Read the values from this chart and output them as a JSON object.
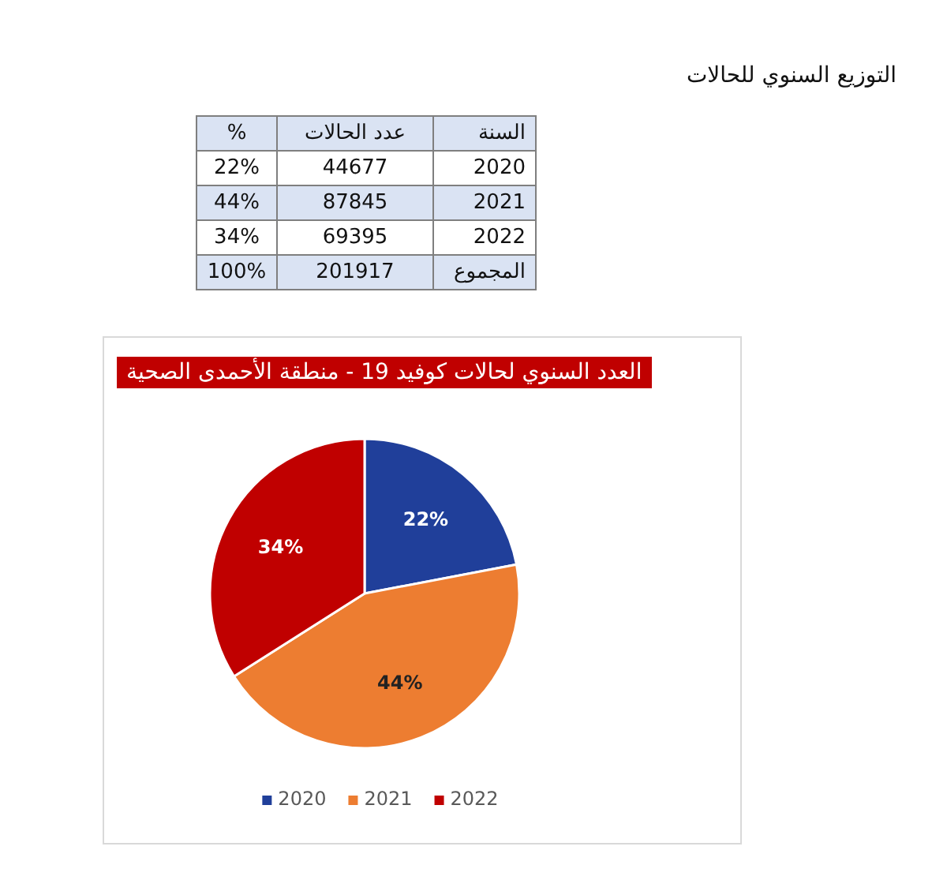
{
  "chart_data": [
    {
      "type": "other",
      "title": "التوزيع السنوي للحالات",
      "annotations": [
        "السنة",
        "عدد الحالات",
        "%",
        "2020",
        "44677",
        "22%",
        "2021",
        "87845",
        "44%",
        "2022",
        "69395",
        "34%",
        "المجموع",
        "201917",
        "100%"
      ]
    },
    {
      "type": "pie",
      "title": "العدد السنوي لحالات كوفيد 19 - منطقة الأحمدى الصحية",
      "categories": [
        "2020",
        "2021",
        "2022"
      ],
      "values": [
        22,
        44,
        34
      ],
      "colors": [
        "#203f9a",
        "#ed7d31",
        "#c00000"
      ],
      "value_labels": [
        "22%",
        "44%",
        "34%"
      ],
      "legend": "bottom"
    }
  ]
}
